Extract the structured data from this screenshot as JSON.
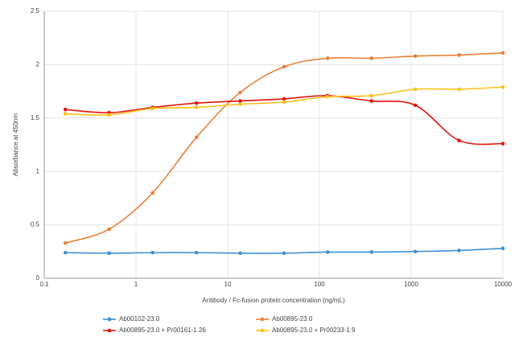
{
  "chart_data": {
    "type": "line",
    "x_label": "Antibody / Fc-fusion protein concentration (ng/mL)",
    "y_label": "Absorbance at 450nm",
    "x": [
      0.17,
      0.51,
      1.52,
      4.57,
      13.7,
      41.2,
      123,
      370,
      1111,
      3333,
      10000
    ],
    "x_log": true,
    "xlim": [
      0.1,
      10000
    ],
    "xticks": [
      0.1,
      1,
      10,
      100,
      1000,
      10000
    ],
    "ylim": [
      0,
      2.5
    ],
    "yticks": [
      0,
      0.5,
      1,
      1.5,
      2,
      2.5
    ],
    "grid": true,
    "legend": "bottom",
    "series": [
      {
        "name": "Ab00102-23.0",
        "color": "#3f8fd2",
        "values": [
          0.24,
          0.235,
          0.24,
          0.24,
          0.235,
          0.235,
          0.245,
          0.245,
          0.25,
          0.26,
          0.28
        ]
      },
      {
        "name": "Ab00895-23.0",
        "color": "#e8803a",
        "values": [
          0.33,
          0.46,
          0.8,
          1.32,
          1.74,
          1.98,
          2.06,
          2.06,
          2.08,
          2.09,
          2.11
        ]
      },
      {
        "name": "Ab00895-23.0 + Pr00161-1.26",
        "color": "#e3130f",
        "values": [
          1.58,
          1.55,
          1.6,
          1.64,
          1.66,
          1.68,
          1.71,
          1.66,
          1.62,
          1.29,
          1.26
        ]
      },
      {
        "name": "Ab00895-23.0 + Pr00233-1.9",
        "color": "#f8c21a",
        "values": [
          1.54,
          1.53,
          1.59,
          1.6,
          1.63,
          1.65,
          1.7,
          1.71,
          1.77,
          1.77,
          1.79
        ]
      }
    ]
  }
}
